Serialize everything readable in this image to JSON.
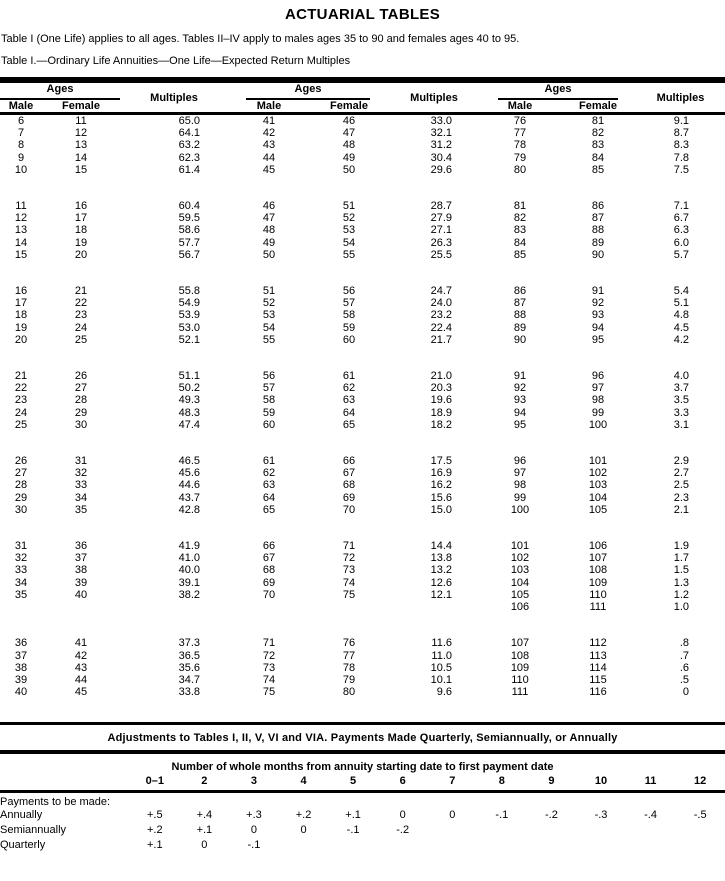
{
  "title": "ACTUARIAL TABLES",
  "intro": {
    "line1": "Table I (One Life) applies to all ages. Tables II–IV apply to males ages 35 to 90 and females ages 40 to 95.",
    "line2": "Table I.—Ordinary Life Annuities—One Life—Expected Return Multiples"
  },
  "table1": {
    "group_header": "Ages",
    "male_header": "Male",
    "female_header": "Female",
    "multiples_header": "Multiples",
    "blocks": [
      [
        [
          "6",
          "11",
          "65.0",
          "41",
          "46",
          "33.0",
          "76",
          "81",
          "9.1"
        ],
        [
          "7",
          "12",
          "64.1",
          "42",
          "47",
          "32.1",
          "77",
          "82",
          "8.7"
        ],
        [
          "8",
          "13",
          "63.2",
          "43",
          "48",
          "31.2",
          "78",
          "83",
          "8.3"
        ],
        [
          "9",
          "14",
          "62.3",
          "44",
          "49",
          "30.4",
          "79",
          "84",
          "7.8"
        ],
        [
          "10",
          "15",
          "61.4",
          "45",
          "50",
          "29.6",
          "80",
          "85",
          "7.5"
        ]
      ],
      [
        [
          "11",
          "16",
          "60.4",
          "46",
          "51",
          "28.7",
          "81",
          "86",
          "7.1"
        ],
        [
          "12",
          "17",
          "59.5",
          "47",
          "52",
          "27.9",
          "82",
          "87",
          "6.7"
        ],
        [
          "13",
          "18",
          "58.6",
          "48",
          "53",
          "27.1",
          "83",
          "88",
          "6.3"
        ],
        [
          "14",
          "19",
          "57.7",
          "49",
          "54",
          "26.3",
          "84",
          "89",
          "6.0"
        ],
        [
          "15",
          "20",
          "56.7",
          "50",
          "55",
          "25.5",
          "85",
          "90",
          "5.7"
        ]
      ],
      [
        [
          "16",
          "21",
          "55.8",
          "51",
          "56",
          "24.7",
          "86",
          "91",
          "5.4"
        ],
        [
          "17",
          "22",
          "54.9",
          "52",
          "57",
          "24.0",
          "87",
          "92",
          "5.1"
        ],
        [
          "18",
          "23",
          "53.9",
          "53",
          "58",
          "23.2",
          "88",
          "93",
          "4.8"
        ],
        [
          "19",
          "24",
          "53.0",
          "54",
          "59",
          "22.4",
          "89",
          "94",
          "4.5"
        ],
        [
          "20",
          "25",
          "52.1",
          "55",
          "60",
          "21.7",
          "90",
          "95",
          "4.2"
        ]
      ],
      [
        [
          "21",
          "26",
          "51.1",
          "56",
          "61",
          "21.0",
          "91",
          "96",
          "4.0"
        ],
        [
          "22",
          "27",
          "50.2",
          "57",
          "62",
          "20.3",
          "92",
          "97",
          "3.7"
        ],
        [
          "23",
          "28",
          "49.3",
          "58",
          "63",
          "19.6",
          "93",
          "98",
          "3.5"
        ],
        [
          "24",
          "29",
          "48.3",
          "59",
          "64",
          "18.9",
          "94",
          "99",
          "3.3"
        ],
        [
          "25",
          "30",
          "47.4",
          "60",
          "65",
          "18.2",
          "95",
          "100",
          "3.1"
        ]
      ],
      [
        [
          "26",
          "31",
          "46.5",
          "61",
          "66",
          "17.5",
          "96",
          "101",
          "2.9"
        ],
        [
          "27",
          "32",
          "45.6",
          "62",
          "67",
          "16.9",
          "97",
          "102",
          "2.7"
        ],
        [
          "28",
          "33",
          "44.6",
          "63",
          "68",
          "16.2",
          "98",
          "103",
          "2.5"
        ],
        [
          "29",
          "34",
          "43.7",
          "64",
          "69",
          "15.6",
          "99",
          "104",
          "2.3"
        ],
        [
          "30",
          "35",
          "42.8",
          "65",
          "70",
          "15.0",
          "100",
          "105",
          "2.1"
        ]
      ],
      [
        [
          "31",
          "36",
          "41.9",
          "66",
          "71",
          "14.4",
          "101",
          "106",
          "1.9"
        ],
        [
          "32",
          "37",
          "41.0",
          "67",
          "72",
          "13.8",
          "102",
          "107",
          "1.7"
        ],
        [
          "33",
          "38",
          "40.0",
          "68",
          "73",
          "13.2",
          "103",
          "108",
          "1.5"
        ],
        [
          "34",
          "39",
          "39.1",
          "69",
          "74",
          "12.6",
          "104",
          "109",
          "1.3"
        ],
        [
          "35",
          "40",
          "38.2",
          "70",
          "75",
          "12.1",
          "105",
          "110",
          "1.2"
        ],
        [
          "",
          "",
          "",
          "",
          "",
          "",
          "106",
          "111",
          "1.0"
        ]
      ],
      [
        [
          "36",
          "41",
          "37.3",
          "71",
          "76",
          "11.6",
          "107",
          "112",
          ".8"
        ],
        [
          "37",
          "42",
          "36.5",
          "72",
          "77",
          "11.0",
          "108",
          "113",
          ".7"
        ],
        [
          "38",
          "43",
          "35.6",
          "73",
          "78",
          "10.5",
          "109",
          "114",
          ".6"
        ],
        [
          "39",
          "44",
          "34.7",
          "74",
          "79",
          "10.1",
          "110",
          "115",
          ".5"
        ],
        [
          "40",
          "45",
          "33.8",
          "75",
          "80",
          "9.6",
          "111",
          "116",
          "0"
        ]
      ]
    ]
  },
  "adjustments": {
    "heading": "Adjustments to Tables I, II, V, VI and VIA. Payments Made Quarterly, Semiannually, or Annually",
    "months_heading": "Number of whole months from annuity starting date to first payment date",
    "month_cols": [
      "0–1",
      "2",
      "3",
      "4",
      "5",
      "6",
      "7",
      "8",
      "9",
      "10",
      "11",
      "12"
    ],
    "group_label": "Payments to be made:",
    "rows": [
      {
        "label": "Annually",
        "values": [
          "+.5",
          "+.4",
          "+.3",
          "+.2",
          "+.1",
          "0",
          "0",
          "-.1",
          "-.2",
          "-.3",
          "-.4",
          "-.5"
        ]
      },
      {
        "label": "Semiannually",
        "values": [
          "+.2",
          "+.1",
          "0",
          "0",
          "-.1",
          "-.2",
          "",
          "",
          "",
          "",
          "",
          ""
        ]
      },
      {
        "label": "Quarterly",
        "values": [
          "+.1",
          "0",
          "-.1",
          "",
          "",
          "",
          "",
          "",
          "",
          "",
          "",
          ""
        ]
      }
    ]
  }
}
